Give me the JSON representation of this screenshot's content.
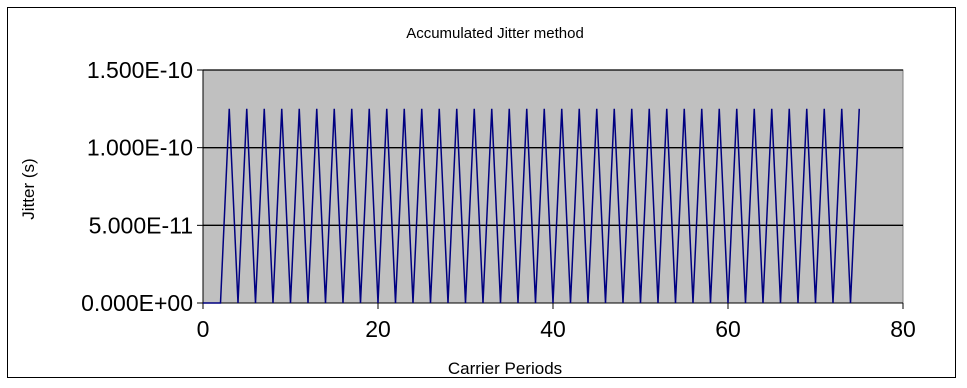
{
  "chart_data": {
    "type": "line",
    "title": "Accumulated Jitter  method",
    "xlabel": "Carrier Periods",
    "ylabel": "Jitter (s)",
    "xlim": [
      0,
      80
    ],
    "ylim": [
      0,
      1.5e-10
    ],
    "x_ticks": [
      0,
      20,
      40,
      60,
      80
    ],
    "x_tick_labels": [
      "0",
      "20",
      "40",
      "60",
      "80"
    ],
    "y_ticks": [
      0,
      5e-11,
      1e-10,
      1.5e-10
    ],
    "y_tick_labels": [
      "0.000E+00",
      "5.000E-11",
      "1.000E-10",
      "1.500E-10"
    ],
    "grid": "horizontal major gridlines",
    "legend": "none",
    "colors": {
      "plot_background": "#c0c0c0",
      "series_line": "#000080",
      "gridline": "#000000"
    },
    "series": [
      {
        "x": [
          0,
          1,
          2,
          3,
          4,
          5,
          6,
          7,
          8,
          9,
          10,
          11,
          12,
          13,
          14,
          15,
          16,
          17,
          18,
          19,
          20,
          21,
          22,
          23,
          24,
          25,
          26,
          27,
          28,
          29,
          30,
          31,
          32,
          33,
          34,
          35,
          36,
          37,
          38,
          39,
          40,
          41,
          42,
          43,
          44,
          45,
          46,
          47,
          48,
          49,
          50,
          51,
          52,
          53,
          54,
          55,
          56,
          57,
          58,
          59,
          60,
          61,
          62,
          63,
          64,
          65,
          66,
          67,
          68,
          69,
          70,
          71,
          72,
          73,
          74,
          75
        ],
        "y": [
          0,
          0,
          0,
          1.25e-10,
          0,
          1.25e-10,
          0,
          1.25e-10,
          0,
          1.25e-10,
          0,
          1.25e-10,
          0,
          1.25e-10,
          0,
          1.25e-10,
          0,
          1.25e-10,
          0,
          1.25e-10,
          0,
          1.25e-10,
          0,
          1.25e-10,
          0,
          1.25e-10,
          0,
          1.25e-10,
          0,
          1.25e-10,
          0,
          1.25e-10,
          0,
          1.25e-10,
          0,
          1.25e-10,
          0,
          1.25e-10,
          0,
          1.25e-10,
          0,
          1.25e-10,
          0,
          1.25e-10,
          0,
          1.25e-10,
          0,
          1.25e-10,
          0,
          1.25e-10,
          0,
          1.25e-10,
          0,
          1.25e-10,
          0,
          1.25e-10,
          0,
          1.25e-10,
          0,
          1.25e-10,
          0,
          1.25e-10,
          0,
          1.25e-10,
          0,
          1.25e-10,
          0,
          1.25e-10,
          0,
          1.25e-10,
          0,
          1.25e-10,
          0,
          1.25e-10,
          0,
          1.25e-10
        ]
      }
    ]
  }
}
